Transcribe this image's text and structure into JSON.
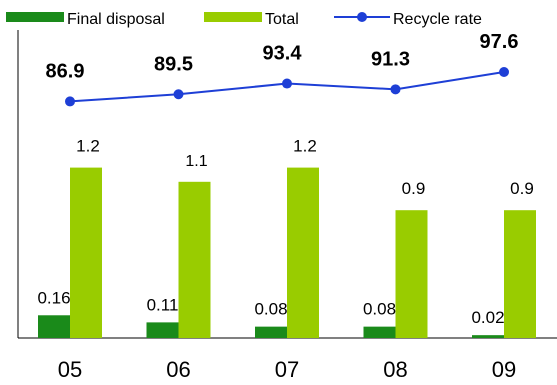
{
  "chart_data": {
    "type": "bar",
    "categories": [
      "05",
      "06",
      "07",
      "08",
      "09"
    ],
    "legend_position": "top",
    "series": [
      {
        "name": "Final disposal",
        "kind": "bar",
        "color": "#1a8a1a",
        "values": [
          0.16,
          0.11,
          0.08,
          0.08,
          0.02
        ],
        "labels": [
          "0.16",
          "0.11",
          "0.08",
          "0.08",
          "0.02"
        ]
      },
      {
        "name": "Total",
        "kind": "bar",
        "color": "#99cc00",
        "values": [
          1.2,
          1.1,
          1.2,
          0.9,
          0.9
        ],
        "labels": [
          "1.2",
          "1.1",
          "1.2",
          "0.9",
          "0.9"
        ]
      },
      {
        "name": "Recycle rate",
        "kind": "line",
        "color": "#1e3fd6",
        "values": [
          86.9,
          89.5,
          93.4,
          91.3,
          97.6
        ],
        "labels": [
          "86.9",
          "89.5",
          "93.4",
          "91.3",
          "97.6"
        ]
      }
    ],
    "ylim_bars": [
      0,
      1.6
    ],
    "grid": false
  }
}
